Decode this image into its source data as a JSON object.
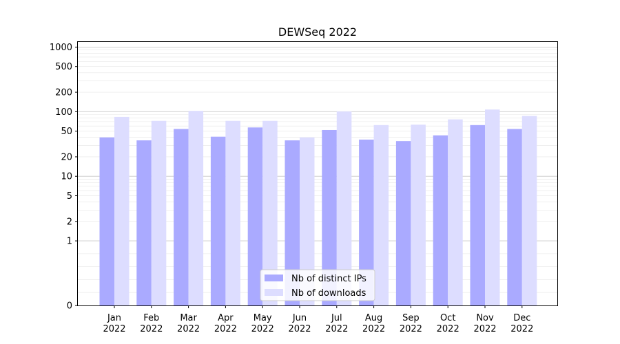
{
  "chart_data": {
    "type": "bar",
    "title": "DEWSeq 2022",
    "xlabel": "",
    "ylabel": "",
    "yscale": "symlog",
    "ylim": [
      0,
      1200
    ],
    "yticks": [
      0,
      1,
      2,
      5,
      10,
      20,
      50,
      100,
      200,
      500,
      1000
    ],
    "grid": true,
    "legend_position": "bottom-center",
    "categories": [
      [
        "Jan",
        "2022"
      ],
      [
        "Feb",
        "2022"
      ],
      [
        "Mar",
        "2022"
      ],
      [
        "Apr",
        "2022"
      ],
      [
        "May",
        "2022"
      ],
      [
        "Jun",
        "2022"
      ],
      [
        "Jul",
        "2022"
      ],
      [
        "Aug",
        "2022"
      ],
      [
        "Sep",
        "2022"
      ],
      [
        "Oct",
        "2022"
      ],
      [
        "Nov",
        "2022"
      ],
      [
        "Dec",
        "2022"
      ]
    ],
    "series": [
      {
        "name": "Nb of distinct IPs",
        "color": "#aaaaff",
        "values": [
          40,
          36,
          54,
          41,
          57,
          36,
          52,
          37,
          35,
          43,
          62,
          54
        ]
      },
      {
        "name": "Nb of downloads",
        "color": "#ddddff",
        "values": [
          83,
          72,
          103,
          72,
          72,
          40,
          101,
          62,
          63,
          76,
          108,
          86
        ]
      }
    ]
  }
}
